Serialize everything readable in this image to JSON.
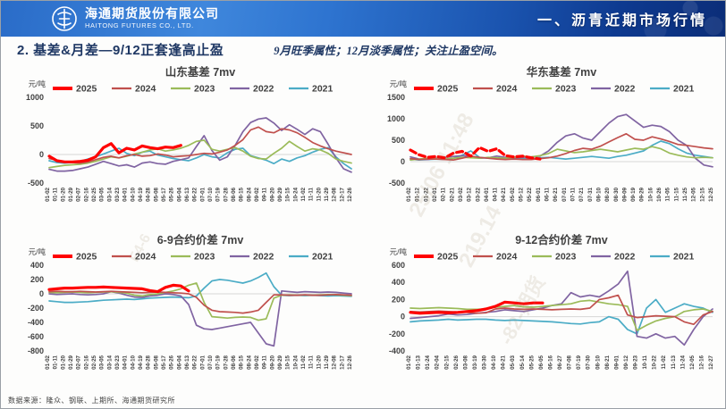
{
  "header": {
    "company_cn": "海通期货股份有限公司",
    "company_en": "HAITONG FUTURES CO., LTD.",
    "section_title": "一、沥青近期市场行情"
  },
  "page": {
    "title": "2. 基差&月差—9/12正套逢高止盈",
    "note": "9月旺季属性；12月淡季属性；关注止盈空间。"
  },
  "footer": {
    "source": "数据来源：隆众、钢联、上期所、海通期货研究所"
  },
  "watermark": {
    "fragments": [
      "25/06 11:48",
      "219.14",
      "-82-期货",
      "F4-6"
    ]
  },
  "colors": {
    "s2025": "#FF0000",
    "s2024": "#C0504D",
    "s2023": "#9BBB59",
    "s2022": "#8064A2",
    "s2021": "#4BACC6",
    "title_text": "#1F3864",
    "zero_line": "#D6D6D6",
    "banner_start": "#3F87DC",
    "banner_end": "#0B2D78"
  },
  "chart_data": [
    {
      "type": "line",
      "title": "山东基差 7mv",
      "unit": "元/吨",
      "ylim": [
        -500,
        1000
      ],
      "yticks": [
        1000,
        500,
        0,
        -500
      ],
      "grid": "zero-line-only",
      "legend_position": "top",
      "categories": [
        "01-02",
        "01-11",
        "01-20",
        "01-29",
        "02-07",
        "02-16",
        "02-25",
        "03-05",
        "03-14",
        "03-23",
        "04-01",
        "04-10",
        "04-19",
        "04-28",
        "05-08",
        "05-17",
        "05-26",
        "06-04",
        "06-13",
        "06-22",
        "07-01",
        "07-10",
        "07-19",
        "07-28",
        "08-06",
        "08-15",
        "08-24",
        "09-02",
        "09-11",
        "09-20",
        "09-29",
        "10-15",
        "10-24",
        "11-02",
        "11-11",
        "11-20",
        "11-29",
        "12-08",
        "12-17",
        "12-26"
      ],
      "series": [
        {
          "name": "2025",
          "color": "#FF0000",
          "width": 3.2,
          "values": [
            -30,
            -110,
            -130,
            -130,
            -120,
            -100,
            -40,
            120,
            190,
            30,
            110,
            80,
            150,
            120,
            100,
            130,
            120,
            160,
            null,
            null,
            null,
            null,
            null,
            null,
            null,
            null,
            null,
            null,
            null,
            null,
            null,
            null,
            null,
            null,
            null,
            null,
            null,
            null,
            null,
            null
          ]
        },
        {
          "name": "2024",
          "color": "#C0504D",
          "width": 1.7,
          "values": [
            -70,
            -100,
            -130,
            -140,
            -150,
            -130,
            -90,
            -50,
            -30,
            -60,
            -20,
            0,
            -30,
            -20,
            10,
            -10,
            -40,
            -30,
            -20,
            0,
            20,
            10,
            40,
            80,
            160,
            260,
            430,
            480,
            400,
            380,
            450,
            430,
            380,
            300,
            210,
            150,
            100,
            60,
            30,
            0
          ]
        },
        {
          "name": "2023",
          "color": "#9BBB59",
          "width": 1.7,
          "values": [
            -230,
            -210,
            -190,
            -180,
            -170,
            -150,
            -120,
            -80,
            -40,
            -60,
            -30,
            10,
            40,
            80,
            100,
            60,
            80,
            110,
            160,
            230,
            250,
            90,
            60,
            90,
            120,
            60,
            -30,
            -70,
            -80,
            20,
            110,
            230,
            140,
            60,
            100,
            80,
            20,
            -80,
            -120,
            -150
          ]
        },
        {
          "name": "2022",
          "color": "#8064A2",
          "width": 1.7,
          "values": [
            -260,
            -290,
            -290,
            -280,
            -250,
            -220,
            -170,
            -120,
            -160,
            -200,
            -180,
            -220,
            -150,
            -130,
            -160,
            -170,
            -120,
            -90,
            -60,
            140,
            330,
            70,
            -100,
            -40,
            160,
            400,
            560,
            620,
            640,
            550,
            420,
            520,
            440,
            350,
            450,
            400,
            180,
            -60,
            -250,
            -310
          ]
        },
        {
          "name": "2021",
          "color": "#4BACC6",
          "width": 1.7,
          "values": [
            -110,
            -140,
            -150,
            -140,
            -120,
            -80,
            -40,
            10,
            60,
            110,
            20,
            -20,
            40,
            60,
            -10,
            -40,
            -70,
            -90,
            -110,
            -60,
            0,
            -40,
            -60,
            30,
            90,
            110,
            -20,
            -60,
            -100,
            -160,
            -80,
            -120,
            -60,
            -20,
            40,
            90,
            120,
            -40,
            -160,
            -250
          ]
        }
      ]
    },
    {
      "type": "line",
      "title": "华东基差 7mv",
      "unit": "元/吨",
      "ylim": [
        -500,
        1500
      ],
      "yticks": [
        1500,
        1000,
        500,
        0,
        -500
      ],
      "grid": "zero-line-only",
      "legend_position": "top",
      "categories": [
        "01-02",
        "01-12",
        "01-22",
        "02-01",
        "02-11",
        "02-21",
        "03-02",
        "03-12",
        "03-22",
        "04-01",
        "04-11",
        "04-21",
        "05-02",
        "05-12",
        "05-22",
        "06-01",
        "06-11",
        "06-21",
        "07-01",
        "07-11",
        "07-21",
        "07-31",
        "08-10",
        "08-20",
        "08-30",
        "09-09",
        "09-19",
        "09-29",
        "10-16",
        "10-26",
        "11-05",
        "11-15",
        "11-25",
        "12-05",
        "12-15",
        "12-25"
      ],
      "series": [
        {
          "name": "2025",
          "color": "#FF0000",
          "width": 3.2,
          "dash": "7 4",
          "values": [
            270,
            160,
            100,
            120,
            90,
            200,
            240,
            130,
            330,
            240,
            300,
            140,
            110,
            130,
            90,
            60,
            null,
            null,
            null,
            null,
            null,
            null,
            null,
            null,
            null,
            null,
            null,
            null,
            null,
            null,
            null,
            null,
            null,
            null,
            null,
            null
          ]
        },
        {
          "name": "2024",
          "color": "#C0504D",
          "width": 1.7,
          "values": [
            70,
            50,
            60,
            60,
            50,
            40,
            80,
            130,
            100,
            80,
            60,
            50,
            60,
            50,
            50,
            70,
            90,
            130,
            190,
            260,
            310,
            290,
            360,
            460,
            560,
            650,
            520,
            500,
            580,
            530,
            470,
            400,
            380,
            350,
            320,
            300
          ]
        },
        {
          "name": "2023",
          "color": "#9BBB59",
          "width": 1.7,
          "values": [
            40,
            60,
            80,
            70,
            60,
            80,
            100,
            90,
            80,
            100,
            90,
            80,
            100,
            130,
            110,
            140,
            190,
            290,
            250,
            210,
            230,
            260,
            290,
            260,
            230,
            270,
            310,
            290,
            350,
            300,
            200,
            150,
            110,
            90,
            100,
            90
          ]
        },
        {
          "name": "2022",
          "color": "#8064A2",
          "width": 1.7,
          "values": [
            110,
            60,
            50,
            80,
            100,
            120,
            140,
            120,
            80,
            90,
            130,
            100,
            90,
            100,
            110,
            130,
            250,
            450,
            600,
            650,
            550,
            500,
            700,
            900,
            1050,
            1100,
            950,
            800,
            850,
            820,
            700,
            500,
            380,
            80,
            -80,
            -120
          ]
        },
        {
          "name": "2021",
          "color": "#4BACC6",
          "width": 1.7,
          "values": [
            60,
            40,
            50,
            60,
            50,
            80,
            150,
            250,
            100,
            80,
            70,
            60,
            80,
            70,
            60,
            90,
            100,
            80,
            60,
            80,
            100,
            120,
            100,
            80,
            120,
            150,
            200,
            250,
            380,
            480,
            420,
            300,
            200,
            150,
            120,
            90
          ]
        }
      ]
    },
    {
      "type": "line",
      "title": "6-9合约价差 7mv",
      "unit": "元/吨",
      "ylim": [
        -800,
        400
      ],
      "yticks": [
        400,
        200,
        0,
        -200,
        -400,
        -600,
        -800
      ],
      "grid": "zero-line-only",
      "legend_position": "top",
      "categories": [
        "01-02",
        "01-11",
        "01-20",
        "01-29",
        "02-07",
        "02-16",
        "02-25",
        "03-05",
        "03-14",
        "03-23",
        "04-01",
        "04-10",
        "04-19",
        "04-28",
        "05-08",
        "05-17",
        "05-26",
        "06-04",
        "06-13",
        "06-22",
        "07-01",
        "07-10",
        "07-19",
        "07-28",
        "08-06",
        "08-15",
        "08-24",
        "09-02",
        "09-11",
        "09-20",
        "09-29",
        "10-15",
        "10-24",
        "11-02",
        "11-11",
        "11-20",
        "11-29",
        "12-08",
        "12-17",
        "12-26"
      ],
      "series": [
        {
          "name": "2025",
          "color": "#FF0000",
          "width": 3.2,
          "values": [
            60,
            70,
            80,
            80,
            85,
            90,
            90,
            95,
            90,
            85,
            80,
            75,
            70,
            45,
            30,
            90,
            120,
            110,
            40,
            null,
            null,
            null,
            null,
            null,
            null,
            null,
            null,
            null,
            null,
            null,
            null,
            null,
            null,
            null,
            null,
            null,
            null,
            null,
            null,
            null
          ]
        },
        {
          "name": "2024",
          "color": "#C0504D",
          "width": 1.7,
          "values": [
            30,
            35,
            30,
            30,
            35,
            30,
            25,
            30,
            35,
            30,
            25,
            20,
            15,
            20,
            25,
            20,
            15,
            10,
            0,
            -50,
            -160,
            -230,
            -250,
            -255,
            -260,
            -270,
            -255,
            -230,
            -120,
            -15,
            -15,
            -20,
            -20,
            -15,
            -20,
            -20,
            -15,
            -10,
            -15,
            -20
          ]
        },
        {
          "name": "2023",
          "color": "#9BBB59",
          "width": 1.7,
          "values": [
            20,
            15,
            20,
            25,
            20,
            15,
            20,
            25,
            30,
            20,
            10,
            -20,
            -30,
            -10,
            0,
            20,
            40,
            70,
            120,
            150,
            -120,
            -320,
            -330,
            -340,
            -330,
            -325,
            -330,
            -370,
            -350,
            -60,
            -20,
            -15,
            -20,
            -15,
            -20,
            -15,
            -10,
            -15,
            -20,
            -25
          ]
        },
        {
          "name": "2022",
          "color": "#8064A2",
          "width": 1.7,
          "values": [
            0,
            -10,
            -5,
            0,
            -10,
            -15,
            -10,
            0,
            30,
            10,
            -20,
            -45,
            -50,
            -30,
            -20,
            0,
            -10,
            -30,
            -150,
            -440,
            -490,
            -500,
            -480,
            -460,
            -440,
            -420,
            -400,
            -550,
            -700,
            -730,
            40,
            30,
            20,
            30,
            25,
            20,
            25,
            20,
            10,
            0
          ]
        },
        {
          "name": "2021",
          "color": "#4BACC6",
          "width": 1.7,
          "values": [
            -100,
            -110,
            -120,
            -120,
            -115,
            -110,
            -100,
            -90,
            -85,
            -80,
            -75,
            -80,
            -70,
            -60,
            -55,
            -50,
            -45,
            -50,
            -55,
            -30,
            80,
            180,
            200,
            190,
            170,
            150,
            180,
            230,
            290,
            100,
            -20,
            -25,
            -20,
            -25,
            -20,
            -25,
            -30,
            -25,
            -30,
            -35
          ]
        }
      ]
    },
    {
      "type": "line",
      "title": "9-12合约价差 7mv",
      "unit": "元/吨",
      "ylim": [
        -400,
        600
      ],
      "yticks": [
        600,
        400,
        200,
        0,
        -200,
        -400
      ],
      "grid": "zero-line-only",
      "legend_position": "top",
      "categories": [
        "01-02",
        "01-13",
        "01-24",
        "02-04",
        "02-15",
        "02-26",
        "03-08",
        "03-19",
        "03-30",
        "04-10",
        "04-21",
        "05-03",
        "05-14",
        "05-25",
        "06-05",
        "06-16",
        "06-27",
        "07-08",
        "07-19",
        "07-30",
        "08-10",
        "08-21",
        "09-01",
        "09-12",
        "09-23",
        "10-11",
        "10-22",
        "11-02",
        "11-13",
        "11-24",
        "12-05",
        "12-16",
        "12-27"
      ],
      "series": [
        {
          "name": "2025",
          "color": "#FF0000",
          "width": 3.2,
          "values": [
            50,
            40,
            45,
            50,
            45,
            50,
            60,
            70,
            90,
            120,
            170,
            160,
            150,
            160,
            160,
            null,
            null,
            null,
            null,
            null,
            null,
            null,
            null,
            null,
            null,
            null,
            null,
            null,
            null,
            null,
            null,
            null,
            null
          ]
        },
        {
          "name": "2024",
          "color": "#C0504D",
          "width": 1.7,
          "values": [
            60,
            55,
            60,
            65,
            60,
            55,
            50,
            40,
            45,
            90,
            100,
            90,
            85,
            90,
            85,
            80,
            85,
            90,
            85,
            100,
            200,
            220,
            250,
            20,
            -10,
            0,
            10,
            5,
            0,
            -60,
            -90,
            20,
            60
          ]
        },
        {
          "name": "2023",
          "color": "#9BBB59",
          "width": 1.7,
          "values": [
            100,
            95,
            100,
            105,
            100,
            95,
            85,
            85,
            90,
            110,
            120,
            130,
            115,
            110,
            120,
            130,
            140,
            150,
            180,
            190,
            170,
            150,
            140,
            120,
            -160,
            -100,
            -50,
            -20,
            0,
            60,
            80,
            90,
            60
          ]
        },
        {
          "name": "2022",
          "color": "#8064A2",
          "width": 1.7,
          "values": [
            -20,
            -10,
            0,
            10,
            30,
            20,
            25,
            40,
            50,
            60,
            80,
            70,
            60,
            80,
            100,
            130,
            150,
            280,
            230,
            250,
            230,
            300,
            380,
            530,
            -230,
            -250,
            -200,
            -250,
            -230,
            -330,
            -150,
            0,
            90
          ]
        },
        {
          "name": "2021",
          "color": "#4BACC6",
          "width": 1.7,
          "values": [
            -60,
            -50,
            -45,
            -40,
            -30,
            -40,
            -35,
            -30,
            -30,
            -40,
            -45,
            -40,
            -45,
            -50,
            -55,
            -60,
            -70,
            -80,
            -85,
            -70,
            -60,
            0,
            -30,
            -150,
            -200,
            100,
            200,
            50,
            100,
            150,
            120,
            100,
            50
          ]
        }
      ]
    }
  ]
}
